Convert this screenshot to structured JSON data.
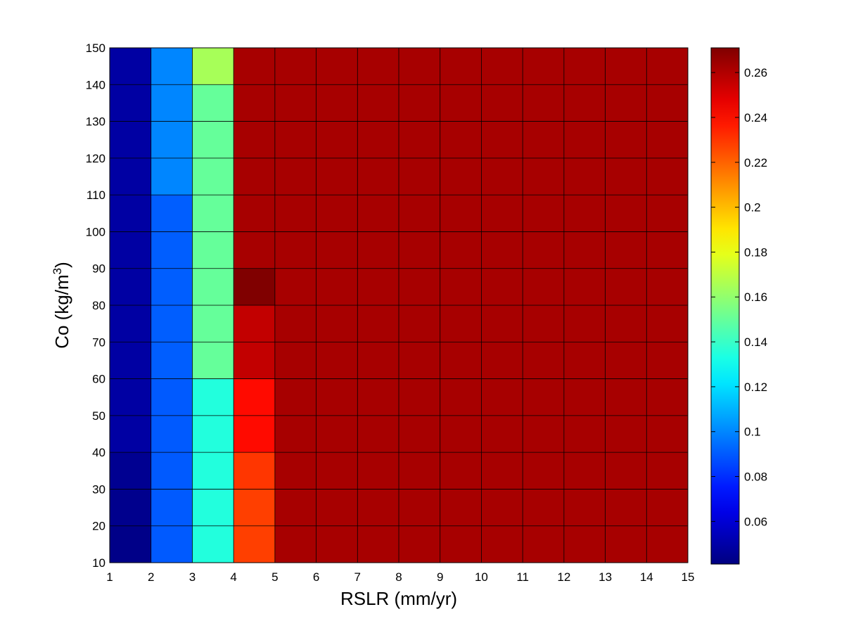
{
  "chart_data": {
    "type": "heatmap",
    "title": "",
    "xlabel": "RSLR (mm/yr)",
    "ylabel_main": "Co (kg/m",
    "ylabel_sup": "3",
    "ylabel_end": ")",
    "x_edges": [
      1,
      2,
      3,
      4,
      5,
      6,
      7,
      8,
      9,
      10,
      11,
      12,
      13,
      14,
      15
    ],
    "y_edges": [
      10,
      20,
      30,
      40,
      50,
      60,
      70,
      80,
      90,
      100,
      110,
      120,
      130,
      140,
      150
    ],
    "xlim": [
      1,
      15
    ],
    "ylim": [
      10,
      150
    ],
    "x_ticks": [
      "1",
      "2",
      "3",
      "4",
      "5",
      "6",
      "7",
      "8",
      "9",
      "10",
      "11",
      "12",
      "13",
      "14",
      "15"
    ],
    "y_ticks": [
      "10",
      "20",
      "30",
      "40",
      "50",
      "60",
      "70",
      "80",
      "90",
      "100",
      "110",
      "120",
      "130",
      "140",
      "150"
    ],
    "grid": true,
    "colormap": "jet",
    "clim": [
      0.041,
      0.271
    ],
    "colorbar_ticks": [
      "0.06",
      "0.08",
      "0.1",
      "0.12",
      "0.14",
      "0.16",
      "0.18",
      "0.2",
      "0.22",
      "0.24",
      "0.26"
    ],
    "colorbar_tick_values": [
      0.06,
      0.08,
      0.1,
      0.12,
      0.14,
      0.16,
      0.18,
      0.2,
      0.22,
      0.24,
      0.26
    ],
    "colorbar_position": "right",
    "rows_bottom_to_top": [
      [
        0.043,
        0.09,
        0.135,
        0.228,
        0.262,
        0.262,
        0.262,
        0.262,
        0.262,
        0.262,
        0.262,
        0.262,
        0.262,
        0.262
      ],
      [
        0.044,
        0.09,
        0.135,
        0.228,
        0.262,
        0.262,
        0.262,
        0.262,
        0.262,
        0.262,
        0.262,
        0.262,
        0.262,
        0.262
      ],
      [
        0.045,
        0.09,
        0.135,
        0.23,
        0.262,
        0.262,
        0.262,
        0.262,
        0.262,
        0.262,
        0.262,
        0.262,
        0.262,
        0.262
      ],
      [
        0.049,
        0.09,
        0.135,
        0.24,
        0.262,
        0.262,
        0.262,
        0.262,
        0.262,
        0.262,
        0.262,
        0.262,
        0.262,
        0.262
      ],
      [
        0.049,
        0.09,
        0.135,
        0.24,
        0.262,
        0.262,
        0.262,
        0.262,
        0.262,
        0.262,
        0.262,
        0.262,
        0.262,
        0.262
      ],
      [
        0.049,
        0.091,
        0.15,
        0.256,
        0.262,
        0.262,
        0.262,
        0.262,
        0.262,
        0.262,
        0.262,
        0.262,
        0.262,
        0.262
      ],
      [
        0.049,
        0.091,
        0.15,
        0.256,
        0.262,
        0.262,
        0.262,
        0.262,
        0.262,
        0.262,
        0.262,
        0.262,
        0.262,
        0.262
      ],
      [
        0.049,
        0.091,
        0.15,
        0.271,
        0.262,
        0.262,
        0.262,
        0.262,
        0.262,
        0.262,
        0.262,
        0.262,
        0.262,
        0.262
      ],
      [
        0.049,
        0.091,
        0.15,
        0.262,
        0.262,
        0.262,
        0.262,
        0.262,
        0.262,
        0.262,
        0.262,
        0.262,
        0.262,
        0.262
      ],
      [
        0.049,
        0.091,
        0.15,
        0.262,
        0.262,
        0.262,
        0.262,
        0.262,
        0.262,
        0.262,
        0.262,
        0.262,
        0.262,
        0.262
      ],
      [
        0.049,
        0.1,
        0.15,
        0.262,
        0.262,
        0.262,
        0.262,
        0.262,
        0.262,
        0.262,
        0.262,
        0.262,
        0.262,
        0.262
      ],
      [
        0.049,
        0.1,
        0.15,
        0.262,
        0.262,
        0.262,
        0.262,
        0.262,
        0.262,
        0.262,
        0.262,
        0.262,
        0.262,
        0.262
      ],
      [
        0.049,
        0.1,
        0.15,
        0.262,
        0.262,
        0.262,
        0.262,
        0.262,
        0.262,
        0.262,
        0.262,
        0.262,
        0.262,
        0.262
      ],
      [
        0.049,
        0.1,
        0.165,
        0.262,
        0.262,
        0.262,
        0.262,
        0.262,
        0.262,
        0.262,
        0.262,
        0.262,
        0.262,
        0.262
      ]
    ]
  }
}
